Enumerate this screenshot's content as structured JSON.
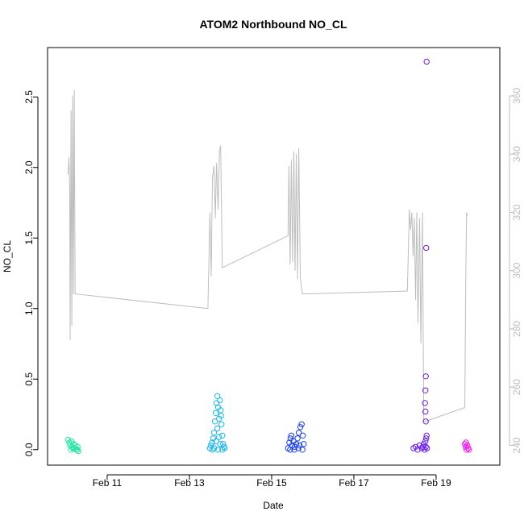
{
  "chart_data": {
    "type": "scatter",
    "title": "ATOM2 Northbound NO_CL",
    "xlabel": "Date",
    "ylabel": "NO_CL",
    "x_ticks": [
      "Feb 11",
      "Feb 13",
      "Feb 15",
      "Feb 17",
      "Feb 19"
    ],
    "x_tick_days": [
      11,
      13,
      15,
      17,
      19
    ],
    "xlim_days": [
      9.55,
      20.55
    ],
    "ylim": [
      -0.11,
      2.85
    ],
    "y_ticks": [
      0.0,
      0.5,
      1.0,
      1.5,
      2.0,
      2.5
    ],
    "y_tick_labels": [
      "0.0",
      "0.5",
      "1.0",
      "1.5",
      "2.0",
      "2.5"
    ],
    "right_axis": {
      "description": "secondary series (grey line)",
      "ylim": [
        233.2,
        376.6
      ],
      "ticks": [
        240,
        260,
        280,
        300,
        320,
        340,
        360
      ],
      "tick_labels": [
        "240",
        "260",
        "280",
        "300",
        "320",
        "340",
        "360"
      ],
      "color": "#bdbdbd"
    },
    "grid": false,
    "series": [
      {
        "color": "#22e6a0",
        "points": [
          [
            10.05,
            0.07
          ],
          [
            10.08,
            0.05
          ],
          [
            10.1,
            0.03
          ],
          [
            10.13,
            0.06
          ],
          [
            10.15,
            0.02
          ],
          [
            10.18,
            0.04
          ],
          [
            10.2,
            0.01
          ],
          [
            10.22,
            0.03
          ],
          [
            10.25,
            0.0
          ],
          [
            10.28,
            0.02
          ],
          [
            10.3,
            -0.01
          ],
          [
            10.12,
            0.0
          ],
          [
            10.17,
            0.01
          ],
          [
            10.27,
            0.0
          ]
        ]
      },
      {
        "color": "#1cb8ee",
        "points": [
          [
            13.5,
            0.01
          ],
          [
            13.52,
            0.03
          ],
          [
            13.55,
            0.05
          ],
          [
            13.58,
            0.08
          ],
          [
            13.6,
            0.12
          ],
          [
            13.62,
            0.2
          ],
          [
            13.64,
            0.26
          ],
          [
            13.66,
            0.33
          ],
          [
            13.68,
            0.38
          ],
          [
            13.7,
            0.3
          ],
          [
            13.72,
            0.22
          ],
          [
            13.74,
            0.35
          ],
          [
            13.76,
            0.28
          ],
          [
            13.78,
            0.18
          ],
          [
            13.8,
            0.1
          ],
          [
            13.82,
            0.04
          ],
          [
            13.84,
            0.02
          ],
          [
            13.86,
            0.01
          ],
          [
            13.56,
            0.0
          ],
          [
            13.6,
            0.01
          ],
          [
            13.65,
            0.06
          ],
          [
            13.7,
            0.0
          ],
          [
            13.75,
            0.04
          ],
          [
            13.8,
            0.0
          ],
          [
            13.68,
            0.15
          ],
          [
            13.72,
            0.09
          ],
          [
            13.77,
            0.24
          ]
        ]
      },
      {
        "color": "#1a3ff0",
        "points": [
          [
            15.4,
            0.01
          ],
          [
            15.43,
            0.05
          ],
          [
            15.46,
            0.08
          ],
          [
            15.5,
            0.03
          ],
          [
            15.53,
            0.06
          ],
          [
            15.56,
            0.02
          ],
          [
            15.6,
            0.04
          ],
          [
            15.63,
            0.08
          ],
          [
            15.66,
            0.12
          ],
          [
            15.7,
            0.16
          ],
          [
            15.73,
            0.18
          ],
          [
            15.76,
            0.1
          ],
          [
            15.78,
            0.04
          ],
          [
            15.45,
            0.0
          ],
          [
            15.55,
            0.0
          ],
          [
            15.65,
            0.01
          ],
          [
            15.75,
            0.0
          ],
          [
            15.48,
            0.1
          ],
          [
            15.68,
            0.03
          ]
        ]
      },
      {
        "color": "#6a1cf0",
        "points": [
          [
            18.45,
            0.01
          ],
          [
            18.5,
            0.02
          ],
          [
            18.55,
            0.0
          ],
          [
            18.6,
            0.03
          ],
          [
            18.65,
            0.01
          ],
          [
            18.68,
            0.02
          ],
          [
            18.7,
            0.04
          ],
          [
            18.72,
            0.0
          ],
          [
            18.75,
            0.02
          ],
          [
            18.78,
            0.01
          ],
          [
            18.74,
            0.06
          ],
          [
            18.76,
            0.08
          ],
          [
            18.77,
            0.1
          ],
          [
            18.75,
            0.2
          ],
          [
            18.74,
            0.27
          ],
          [
            18.73,
            0.33
          ],
          [
            18.74,
            0.42
          ],
          [
            18.75,
            0.52
          ],
          [
            18.76,
            1.43
          ],
          [
            18.77,
            2.75
          ]
        ]
      },
      {
        "color": "#f21cf0",
        "points": [
          [
            19.7,
            0.04
          ],
          [
            19.72,
            0.02
          ],
          [
            19.74,
            0.0
          ],
          [
            19.76,
            0.03
          ],
          [
            19.78,
            0.01
          ],
          [
            19.8,
            0.0
          ],
          [
            19.73,
            0.05
          ]
        ]
      },
      {
        "color": "#bdbdbd",
        "axis": "right",
        "style": "line",
        "points": [
          [
            10.05,
            333
          ],
          [
            10.07,
            339
          ],
          [
            10.09,
            327
          ],
          [
            10.1,
            276
          ],
          [
            10.12,
            355
          ],
          [
            10.14,
            281
          ],
          [
            10.16,
            360
          ],
          [
            10.18,
            292
          ],
          [
            10.2,
            362
          ],
          [
            10.22,
            292
          ],
          [
            13.45,
            287
          ],
          [
            13.5,
            320
          ],
          [
            13.53,
            298
          ],
          [
            13.56,
            332
          ],
          [
            13.6,
            336
          ],
          [
            13.63,
            318
          ],
          [
            13.66,
            337
          ],
          [
            13.7,
            321
          ],
          [
            13.73,
            341
          ],
          [
            13.76,
            343
          ],
          [
            13.8,
            301
          ],
          [
            15.4,
            312
          ],
          [
            15.42,
            336
          ],
          [
            15.45,
            302
          ],
          [
            15.48,
            338
          ],
          [
            15.51,
            303
          ],
          [
            15.54,
            341
          ],
          [
            15.57,
            300
          ],
          [
            15.6,
            340
          ],
          [
            15.63,
            297
          ],
          [
            15.66,
            342
          ],
          [
            15.7,
            297
          ],
          [
            15.75,
            292
          ],
          [
            18.3,
            293
          ],
          [
            18.35,
            321
          ],
          [
            18.38,
            314
          ],
          [
            18.41,
            320
          ],
          [
            18.44,
            305
          ],
          [
            18.47,
            318
          ],
          [
            18.5,
            290
          ],
          [
            18.53,
            320
          ],
          [
            18.56,
            282
          ],
          [
            18.6,
            318
          ],
          [
            18.63,
            275
          ],
          [
            18.67,
            320
          ],
          [
            18.7,
            248
          ],
          [
            19.7,
            253
          ],
          [
            19.72,
            296
          ],
          [
            19.74,
            320
          ],
          [
            19.76,
            319
          ]
        ]
      }
    ]
  }
}
